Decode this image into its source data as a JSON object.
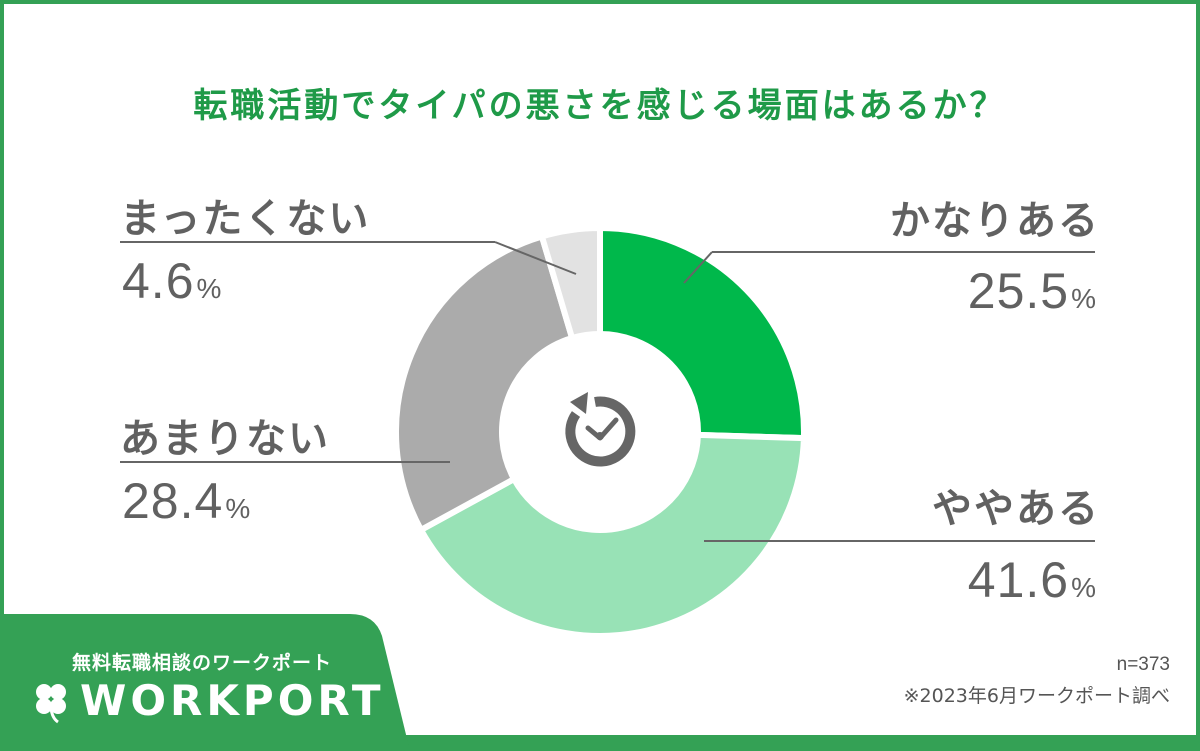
{
  "title": "転職活動でタイパの悪さを感じる場面はあるか？",
  "chart_data": {
    "type": "pie",
    "subtype": "donut",
    "title": "転職活動でタイパの悪さを感じる場面はあるか？",
    "categories": [
      "かなりある",
      "ややある",
      "あまりない",
      "まったくない"
    ],
    "values": [
      25.5,
      41.6,
      28.4,
      4.6
    ],
    "unit": "%",
    "colors": [
      "#00b84b",
      "#98e2b6",
      "#ababab",
      "#e2e2e2"
    ],
    "start_angle": "12 o'clock, clockwise",
    "center_icon": "clock-rotate-icon",
    "sample_size": "n=373"
  },
  "labels": [
    {
      "name": "かなりある",
      "value": "25.5",
      "pct": "%"
    },
    {
      "name": "ややある",
      "value": "41.6",
      "pct": "%"
    },
    {
      "name": "あまりない",
      "value": "28.4",
      "pct": "%"
    },
    {
      "name": "まったくない",
      "value": "4.6",
      "pct": "%"
    }
  ],
  "footer": {
    "tagline": "無料転職相談のワークポート",
    "logo": "WORKPORT",
    "n": "n=373",
    "source": "※2023年6月ワークポート調べ"
  },
  "colors": {
    "brand_green": "#34a155",
    "title_green": "#1f9a48",
    "text_gray": "#616161"
  }
}
